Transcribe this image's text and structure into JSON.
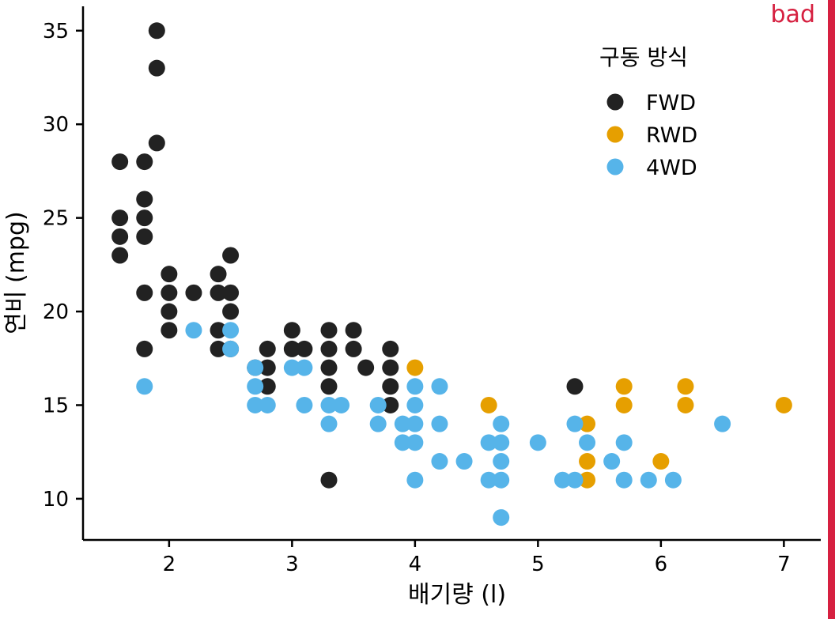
{
  "tag": {
    "text": "bad",
    "color": "#d62040"
  },
  "chart_data": {
    "type": "scatter",
    "xlabel": "배기량 (l)",
    "ylabel": "연비 (mpg)",
    "xlim": [
      1.3,
      7.3
    ],
    "ylim": [
      7.8,
      36.3
    ],
    "xticks": [
      2,
      3,
      4,
      5,
      6,
      7
    ],
    "yticks": [
      10,
      15,
      20,
      25,
      30,
      35
    ],
    "grid": false,
    "legend": {
      "title": "구동 방식",
      "position": "top-right",
      "entries": [
        {
          "label": "FWD",
          "color": "#222222"
        },
        {
          "label": "RWD",
          "color": "#E69F00"
        },
        {
          "label": "4WD",
          "color": "#56B4E9"
        }
      ]
    },
    "series": [
      {
        "name": "FWD",
        "color": "#222222",
        "points": [
          [
            1.6,
            28
          ],
          [
            1.6,
            25
          ],
          [
            1.6,
            24
          ],
          [
            1.6,
            23
          ],
          [
            1.8,
            28
          ],
          [
            1.8,
            26
          ],
          [
            1.8,
            25
          ],
          [
            1.8,
            24
          ],
          [
            1.8,
            21
          ],
          [
            1.8,
            18
          ],
          [
            1.9,
            35
          ],
          [
            1.9,
            33
          ],
          [
            1.9,
            29
          ],
          [
            2.0,
            22
          ],
          [
            2.0,
            21
          ],
          [
            2.0,
            20
          ],
          [
            2.0,
            19
          ],
          [
            2.2,
            21
          ],
          [
            2.4,
            22
          ],
          [
            2.4,
            21
          ],
          [
            2.4,
            19
          ],
          [
            2.4,
            18
          ],
          [
            2.5,
            23
          ],
          [
            2.5,
            21
          ],
          [
            2.5,
            20
          ],
          [
            2.5,
            18
          ],
          [
            2.7,
            17
          ],
          [
            2.8,
            18
          ],
          [
            2.8,
            17
          ],
          [
            2.8,
            16
          ],
          [
            3.0,
            19
          ],
          [
            3.0,
            18
          ],
          [
            3.1,
            18
          ],
          [
            3.3,
            19
          ],
          [
            3.3,
            18
          ],
          [
            3.3,
            17
          ],
          [
            3.3,
            16
          ],
          [
            3.3,
            11
          ],
          [
            3.5,
            19
          ],
          [
            3.5,
            18
          ],
          [
            3.6,
            17
          ],
          [
            3.8,
            18
          ],
          [
            3.8,
            17
          ],
          [
            3.8,
            16
          ],
          [
            3.8,
            15
          ],
          [
            5.3,
            16
          ]
        ]
      },
      {
        "name": "RWD",
        "color": "#E69F00",
        "points": [
          [
            4.0,
            17
          ],
          [
            4.6,
            15
          ],
          [
            5.4,
            14
          ],
          [
            5.4,
            12
          ],
          [
            5.4,
            11
          ],
          [
            5.7,
            16
          ],
          [
            5.7,
            15
          ],
          [
            6.0,
            12
          ],
          [
            6.2,
            16
          ],
          [
            6.2,
            15
          ],
          [
            7.0,
            15
          ]
        ]
      },
      {
        "name": "4WD",
        "color": "#56B4E9",
        "points": [
          [
            1.8,
            16
          ],
          [
            2.2,
            19
          ],
          [
            2.5,
            19
          ],
          [
            2.5,
            18
          ],
          [
            2.7,
            17
          ],
          [
            2.7,
            16
          ],
          [
            2.7,
            15
          ],
          [
            2.8,
            15
          ],
          [
            3.0,
            17
          ],
          [
            3.1,
            17
          ],
          [
            3.1,
            15
          ],
          [
            3.3,
            15
          ],
          [
            3.3,
            14
          ],
          [
            3.4,
            15
          ],
          [
            3.7,
            15
          ],
          [
            3.7,
            14
          ],
          [
            3.9,
            14
          ],
          [
            3.9,
            13
          ],
          [
            4.0,
            16
          ],
          [
            4.0,
            15
          ],
          [
            4.0,
            14
          ],
          [
            4.0,
            13
          ],
          [
            4.0,
            11
          ],
          [
            4.2,
            16
          ],
          [
            4.2,
            14
          ],
          [
            4.2,
            12
          ],
          [
            4.4,
            12
          ],
          [
            4.6,
            13
          ],
          [
            4.6,
            11
          ],
          [
            4.7,
            14
          ],
          [
            4.7,
            13
          ],
          [
            4.7,
            12
          ],
          [
            4.7,
            11
          ],
          [
            4.7,
            9
          ],
          [
            5.0,
            13
          ],
          [
            5.2,
            11
          ],
          [
            5.3,
            14
          ],
          [
            5.3,
            11
          ],
          [
            5.4,
            13
          ],
          [
            5.6,
            12
          ],
          [
            5.7,
            13
          ],
          [
            5.7,
            11
          ],
          [
            5.9,
            11
          ],
          [
            6.1,
            11
          ],
          [
            6.5,
            14
          ]
        ]
      }
    ]
  }
}
